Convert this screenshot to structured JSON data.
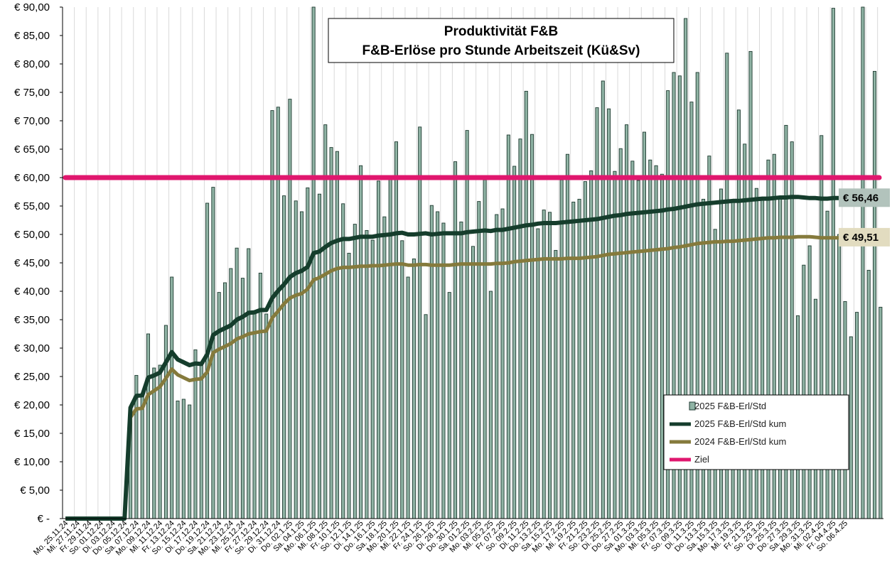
{
  "chart_data": {
    "type": "bar",
    "title": [
      "Produktivität F&B",
      "F&B-Erlöse pro Stunde Arbeitszeit  (Kü&Sv)"
    ],
    "xlabel": "",
    "ylabel": "",
    "ylim": [
      0,
      90
    ],
    "y_ticks": [
      "€ -",
      "€ 5,00",
      "€ 10,00",
      "€ 15,00",
      "€ 20,00",
      "€ 25,00",
      "€ 30,00",
      "€ 35,00",
      "€ 40,00",
      "€ 45,00",
      "€ 50,00",
      "€ 55,00",
      "€ 60,00",
      "€ 65,00",
      "€ 70,00",
      "€ 75,00",
      "€ 80,00",
      "€ 85,00",
      "€ 90,00"
    ],
    "x_tick_labels": [
      "Mo. 25.11.24",
      "Mi. 27.11.24",
      "Fr. 29.11.24",
      "So. 01.12.24",
      "Di. 03.12.24",
      "Do. 05.12.24",
      "Sa. 07.12.24",
      "Mo. 09.12.24",
      "Mi. 11.12.24",
      "Fr. 13.12.24",
      "So. 15.12.24",
      "Di. 17.12.24",
      "Do. 19.12.24",
      "Sa. 21.12.24",
      "Mo. 23.12.24",
      "Mi. 25.12.24",
      "Fr. 27.12.24",
      "So. 29.12.24",
      "Di. 31.12.24",
      "Do. 02.1.25",
      "Sa. 04.1.25",
      "Mo. 06.1.25",
      "Mi. 08.1.25",
      "Fr. 10.1.25",
      "So. 12.1.25",
      "Di. 14.1.25",
      "Do. 16.1.25",
      "Sa. 18.1.25",
      "Mo. 20.1.25",
      "Mi. 22.1.25",
      "Fr. 24.1.25",
      "So. 26.1.25",
      "Di. 28.1.25",
      "Do. 30.1.25",
      "Sa. 01.2.25",
      "Mo. 03.2.25",
      "Mi. 05.2.25",
      "Fr. 07.2.25",
      "So. 09.2.25",
      "Di. 11.2.25",
      "Do. 13.2.25",
      "Sa. 15.2.25",
      "Mo. 17.2.25",
      "Mi. 19.2.25",
      "Fr. 21.2.25",
      "So. 23.2.25",
      "Di. 25.2.25",
      "Do. 27.2.25",
      "Sa. 01.3.25",
      "Mo. 03.3.25",
      "Mi. 05.3.25",
      "Fr. 07.3.25",
      "So. 09.3.25",
      "Di. 11.3.25",
      "Do. 13.3.25",
      "Sa. 15.3.25",
      "Mo. 17.3.25",
      "Mi. 19.3.25",
      "Fr. 21.3.25",
      "So. 23.3.25",
      "Di. 25.3.25",
      "Do. 27.3.25",
      "Sa. 29.3.25",
      "Mo. 31.3.25",
      "Mi. 02.4.25",
      "Fr. 04.4.25",
      "So. 06.4.25"
    ],
    "bars": {
      "name": "2025 F&B-Erl/Std",
      "color": "#8fb3a4",
      "values": [
        0,
        0,
        0,
        0,
        0,
        0,
        0,
        0,
        0,
        0,
        0,
        19.5,
        25.2,
        22.0,
        32.5,
        26.5,
        27.0,
        34.0,
        42.5,
        20.7,
        21.0,
        20.0,
        29.7,
        27.0,
        55.5,
        58.3,
        39.8,
        41.5,
        44.0,
        47.6,
        42.3,
        47.5,
        36.5,
        43.2,
        36.0,
        71.8,
        72.4,
        56.8,
        73.8,
        55.9,
        54.0,
        58.2,
        90.0,
        57.1,
        69.3,
        65.3,
        64.6,
        55.4,
        46.7,
        51.8,
        62.1,
        50.7,
        49.0,
        59.4,
        53.1,
        59.7,
        66.3,
        48.9,
        42.5,
        45.7,
        68.9,
        35.9,
        55.1,
        54.0,
        52.0,
        39.8,
        62.8,
        52.2,
        68.3,
        47.9,
        55.8,
        59.6,
        40.0,
        53.5,
        54.5,
        67.5,
        62.0,
        66.8,
        75.2,
        67.6,
        51.0,
        54.3,
        53.9,
        47.2,
        59.6,
        64.1,
        55.7,
        56.2,
        59.3,
        61.2,
        72.3,
        77.0,
        72.1,
        61.1,
        65.1,
        69.3,
        62.9,
        59.5,
        68.0,
        63.1,
        62.1,
        60.6,
        75.3,
        78.5,
        77.9,
        88.0,
        73.3,
        78.5,
        56.2,
        63.8,
        50.9,
        58.0,
        81.9,
        55.8,
        71.9,
        65.9,
        82.2,
        58.1,
        56.3,
        63.1,
        64.1,
        56.4,
        69.2,
        66.3,
        35.7,
        44.6,
        48.0,
        38.6,
        67.4,
        54.1,
        89.8,
        50.0,
        38.2,
        32.0,
        36.3,
        90.0,
        43.7,
        78.7,
        37.2
      ]
    },
    "series": [
      {
        "name": "2025 F&B-Erl/Std kum",
        "color": "#153d2c",
        "end_label": "€ 56,46",
        "values": [
          0,
          0,
          0,
          0,
          0,
          0,
          0,
          0,
          0,
          0,
          0,
          19.5,
          21.6,
          21.7,
          24.8,
          25.2,
          25.7,
          27.5,
          29.3,
          28.0,
          27.5,
          27.0,
          27.3,
          27.2,
          28.9,
          32.3,
          33.0,
          33.5,
          34.0,
          35.0,
          35.5,
          36.2,
          36.3,
          36.7,
          36.7,
          38.8,
          40.1,
          41.2,
          42.5,
          43.2,
          43.6,
          44.3,
          46.7,
          47.0,
          47.8,
          48.5,
          48.9,
          49.2,
          49.2,
          49.4,
          49.6,
          49.6,
          49.6,
          49.8,
          49.9,
          50.0,
          50.2,
          50.3,
          50.0,
          50.0,
          50.1,
          50.2,
          50.0,
          50.1,
          50.2,
          50.2,
          50.2,
          50.2,
          50.4,
          50.5,
          50.6,
          50.7,
          50.6,
          50.8,
          50.8,
          51.0,
          51.2,
          51.4,
          51.6,
          51.7,
          51.9,
          52.0,
          52.0,
          52.0,
          52.1,
          52.2,
          52.3,
          52.4,
          52.5,
          52.6,
          52.7,
          52.9,
          53.1,
          53.3,
          53.4,
          53.6,
          53.7,
          53.8,
          53.9,
          54.0,
          54.1,
          54.2,
          54.4,
          54.5,
          54.7,
          54.9,
          55.1,
          55.3,
          55.4,
          55.5,
          55.6,
          55.7,
          55.8,
          55.9,
          55.9,
          56.0,
          56.1,
          56.2,
          56.3,
          56.3,
          56.4,
          56.5,
          56.5,
          56.6,
          56.6,
          56.5,
          56.4,
          56.4,
          56.3,
          56.3,
          56.4,
          56.4,
          56.5,
          56.5,
          56.4,
          56.5,
          56.5,
          56.46
        ]
      },
      {
        "name": "2024 F&B-Erl/Std kum",
        "color": "#857a3c",
        "end_label": "€ 49,51",
        "values": [
          0,
          0,
          0,
          0,
          0,
          0,
          0,
          0,
          0,
          0,
          0,
          17.8,
          19.3,
          19.4,
          21.8,
          22.5,
          23.2,
          24.7,
          26.3,
          25.3,
          24.8,
          24.3,
          24.5,
          24.6,
          25.8,
          29.2,
          29.8,
          30.3,
          30.8,
          31.6,
          32.0,
          32.5,
          32.7,
          32.9,
          33.0,
          35.3,
          36.5,
          37.8,
          38.8,
          39.3,
          39.6,
          40.4,
          42.0,
          42.4,
          43.0,
          43.6,
          44.0,
          44.2,
          44.2,
          44.3,
          44.4,
          44.4,
          44.5,
          44.5,
          44.6,
          44.7,
          44.8,
          44.8,
          44.6,
          44.6,
          44.7,
          44.7,
          44.6,
          44.6,
          44.6,
          44.6,
          44.7,
          44.8,
          44.8,
          44.8,
          44.8,
          44.8,
          44.8,
          44.9,
          44.9,
          45.0,
          45.2,
          45.3,
          45.4,
          45.5,
          45.6,
          45.7,
          45.7,
          45.7,
          45.7,
          45.8,
          45.8,
          45.8,
          45.9,
          46.0,
          46.1,
          46.3,
          46.5,
          46.6,
          46.7,
          46.8,
          46.9,
          47.0,
          47.1,
          47.2,
          47.3,
          47.4,
          47.5,
          47.7,
          47.8,
          48.0,
          48.2,
          48.4,
          48.5,
          48.6,
          48.7,
          48.7,
          48.8,
          48.8,
          48.9,
          49.0,
          49.1,
          49.2,
          49.3,
          49.4,
          49.4,
          49.5,
          49.5,
          49.5,
          49.6,
          49.6,
          49.6,
          49.5,
          49.4,
          49.4,
          49.4,
          49.4,
          49.5,
          49.5,
          49.5,
          49.5,
          49.5,
          49.51
        ]
      },
      {
        "name": "Ziel",
        "color": "#e0176e",
        "value": 60
      }
    ],
    "grid": "vertical gridlines",
    "legend_position": "bottom-right",
    "legend": [
      "2025 F&B-Erl/Std",
      "2025 F&B-Erl/Std kum",
      "2024 F&B-Erl/Std kum",
      "Ziel"
    ]
  }
}
